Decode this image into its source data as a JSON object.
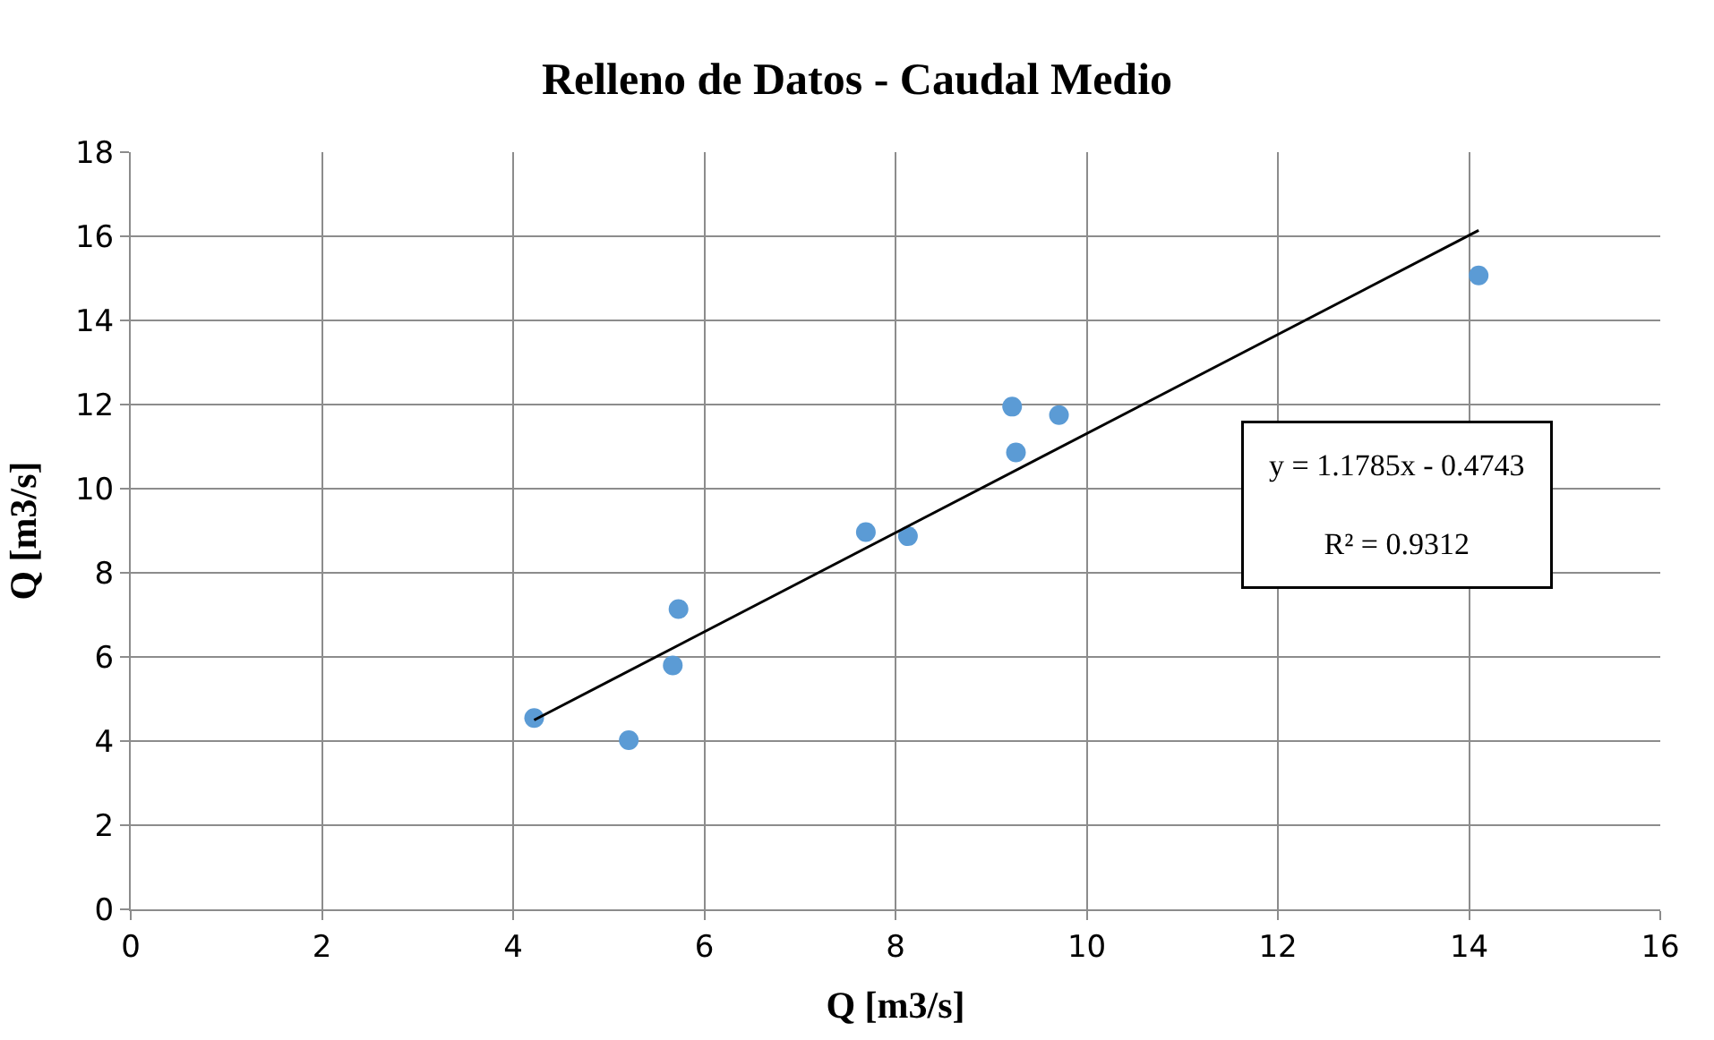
{
  "chart_data": {
    "type": "scatter",
    "title": "Relleno de Datos - Caudal Medio",
    "xlabel": "Q [m3/s]",
    "ylabel": "Q [m3/s]",
    "xlim": [
      0,
      16
    ],
    "xticks": [
      0,
      2,
      4,
      6,
      8,
      10,
      12,
      14,
      16
    ],
    "ylim": [
      0,
      18
    ],
    "yticks": [
      0,
      2,
      4,
      6,
      8,
      10,
      12,
      14,
      16,
      18
    ],
    "grid": true,
    "series": [
      {
        "marker": "circle",
        "color": "#5b9bd5",
        "x": [
          4.22,
          5.21,
          5.67,
          5.73,
          7.69,
          8.13,
          9.22,
          9.26,
          9.71,
          14.1
        ],
        "values": [
          4.55,
          4.02,
          5.8,
          7.14,
          8.97,
          8.87,
          11.95,
          10.86,
          11.75,
          15.07
        ]
      },
      {
        "type": "line",
        "marker": "none",
        "color": "#000000",
        "x": [
          4.22,
          14.1
        ],
        "values": [
          4.5,
          16.14
        ]
      }
    ],
    "annotations": [
      "y = 1.1785x - 0.4743",
      "R² = 0.9312"
    ]
  }
}
